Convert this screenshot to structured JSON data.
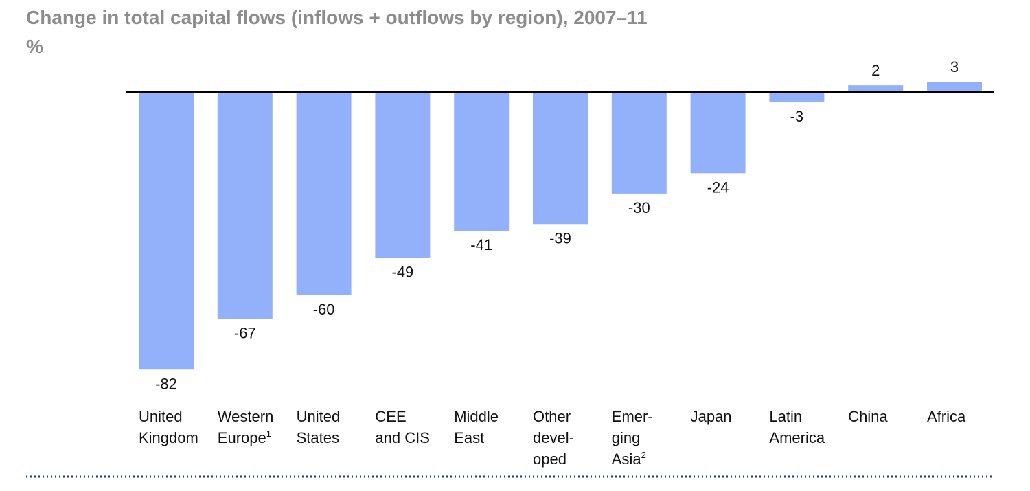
{
  "title": "Change in total capital flows (inflows + outflows by region), 2007–11",
  "unit": "%",
  "colors": {
    "bar": "#93b1fb",
    "axis": "#000000",
    "footer_rule": "#1f3a6b"
  },
  "chart_data": {
    "type": "bar",
    "categories": [
      {
        "lines": [
          "United",
          "Kingdom"
        ]
      },
      {
        "lines": [
          "Western",
          "Europe"
        ],
        "sup": "1"
      },
      {
        "lines": [
          "United",
          "States"
        ]
      },
      {
        "lines": [
          "CEE",
          "and CIS"
        ]
      },
      {
        "lines": [
          "Middle",
          "East"
        ]
      },
      {
        "lines": [
          "Other",
          "devel-",
          "oped"
        ]
      },
      {
        "lines": [
          "Emer-",
          "ging",
          "Asia"
        ],
        "sup": "2"
      },
      {
        "lines": [
          "Japan"
        ]
      },
      {
        "lines": [
          "Latin",
          "America"
        ]
      },
      {
        "lines": [
          "China"
        ]
      },
      {
        "lines": [
          "Africa"
        ]
      }
    ],
    "values": [
      -82,
      -67,
      -60,
      -49,
      -41,
      -39,
      -30,
      -24,
      -3,
      2,
      3
    ],
    "data_labels": [
      "-82",
      "-67",
      "-60",
      "-49",
      "-41",
      "-39",
      "-30",
      "-24",
      "-3",
      "2",
      "3"
    ],
    "grid": false,
    "legend": "none"
  }
}
